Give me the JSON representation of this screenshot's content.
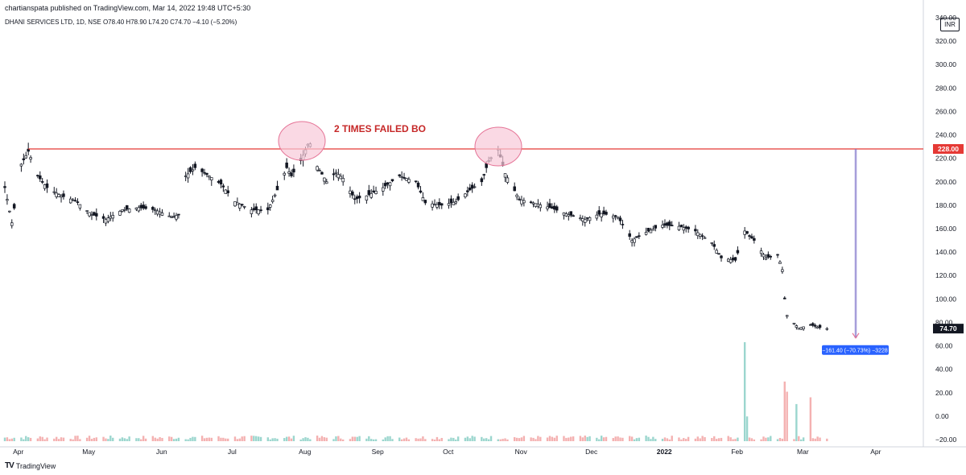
{
  "header": {
    "published": "chartianspata published on TradingView.com, Mar 14, 2022 19:48 UTC+5:30",
    "symbol_line": "DHANI SERVICES LTD, 1D, NSE  O78.40  H78.90  L74.20  C74.70  −4.10 (−5.20%)"
  },
  "currency": "INR",
  "footer": {
    "brand": "TradingView",
    "logo": "tradingview-logo-icon"
  },
  "colors": {
    "up": "#131722",
    "down": "#131722",
    "resistance": "#e53935",
    "circle_fill": "#f8c9d8",
    "circle_stroke": "#e57396",
    "measure": "#7b6fc9",
    "label_bg": "#2962ff",
    "volume_up": "#89cfc6",
    "volume_down": "#f2a3a3"
  },
  "chart_data": {
    "type": "candlestick",
    "x_ticks": [
      "Apr",
      "May",
      "Jun",
      "Jul",
      "Aug",
      "Sep",
      "Oct",
      "Nov",
      "Dec",
      "2022",
      "Feb",
      "Mar",
      "Apr"
    ],
    "y_ticks": [
      "−20.00",
      "0.00",
      "20.00",
      "40.00",
      "60.00",
      "80.00",
      "100.00",
      "120.00",
      "140.00",
      "160.00",
      "180.00",
      "200.00",
      "220.00",
      "240.00",
      "260.00",
      "280.00",
      "300.00",
      "320.00",
      "340.00"
    ],
    "ylim": [
      -20,
      340
    ],
    "last_price": 74.7,
    "last_price_label": "74.70",
    "resistance": {
      "value": 228.0,
      "label": "228.00"
    },
    "annotation": "2 TIMES FAILED BO",
    "measure_label": "−161.40 (−70.73%) −3228",
    "anchors": [
      [
        "2021-03-29",
        195
      ],
      [
        "2021-04-01",
        165
      ],
      [
        "2021-04-05",
        215
      ],
      [
        "2021-04-08",
        226
      ],
      [
        "2021-04-12",
        205
      ],
      [
        "2021-04-16",
        195
      ],
      [
        "2021-04-22",
        188
      ],
      [
        "2021-04-28",
        184
      ],
      [
        "2021-05-05",
        172
      ],
      [
        "2021-05-11",
        168
      ],
      [
        "2021-05-18",
        176
      ],
      [
        "2021-05-25",
        178
      ],
      [
        "2021-06-01",
        176
      ],
      [
        "2021-06-08",
        170
      ],
      [
        "2021-06-11",
        172
      ],
      [
        "2021-06-14",
        205
      ],
      [
        "2021-06-18",
        212
      ],
      [
        "2021-06-24",
        205
      ],
      [
        "2021-06-29",
        198
      ],
      [
        "2021-07-05",
        183
      ],
      [
        "2021-07-12",
        176
      ],
      [
        "2021-07-19",
        176
      ],
      [
        "2021-07-23",
        193
      ],
      [
        "2021-07-27",
        212
      ],
      [
        "2021-07-29",
        205
      ],
      [
        "2021-08-02",
        218
      ],
      [
        "2021-08-05",
        232
      ],
      [
        "2021-08-08",
        233
      ],
      [
        "2021-08-09",
        213
      ],
      [
        "2021-08-13",
        200
      ],
      [
        "2021-08-17",
        208
      ],
      [
        "2021-08-20",
        203
      ],
      [
        "2021-08-25",
        185
      ],
      [
        "2021-08-30",
        188
      ],
      [
        "2021-09-06",
        195
      ],
      [
        "2021-09-13",
        205
      ],
      [
        "2021-09-20",
        200
      ],
      [
        "2021-09-24",
        182
      ],
      [
        "2021-10-01",
        180
      ],
      [
        "2021-10-07",
        183
      ],
      [
        "2021-10-13",
        193
      ],
      [
        "2021-10-18",
        200
      ],
      [
        "2021-10-21",
        218
      ],
      [
        "2021-10-25",
        228
      ],
      [
        "2021-10-28",
        207
      ],
      [
        "2021-11-03",
        185
      ],
      [
        "2021-11-09",
        182
      ],
      [
        "2021-11-16",
        178
      ],
      [
        "2021-11-24",
        172
      ],
      [
        "2021-12-01",
        168
      ],
      [
        "2021-12-08",
        173
      ],
      [
        "2021-12-15",
        170
      ],
      [
        "2021-12-21",
        150
      ],
      [
        "2021-12-27",
        157
      ],
      [
        "2022-01-03",
        163
      ],
      [
        "2022-01-10",
        162
      ],
      [
        "2022-01-17",
        158
      ],
      [
        "2022-01-24",
        148
      ],
      [
        "2022-01-28",
        135
      ],
      [
        "2022-02-03",
        133
      ],
      [
        "2022-02-07",
        158
      ],
      [
        "2022-02-11",
        150
      ],
      [
        "2022-02-16",
        135
      ],
      [
        "2022-02-21",
        138
      ],
      [
        "2022-02-23",
        125
      ],
      [
        "2022-02-24",
        100
      ],
      [
        "2022-02-25",
        86
      ],
      [
        "2022-03-02",
        75
      ],
      [
        "2022-03-07",
        78
      ],
      [
        "2022-03-10",
        76
      ],
      [
        "2022-03-14",
        74.7
      ]
    ],
    "volume_spikes": [
      [
        "2022-02-07",
        68,
        "up"
      ],
      [
        "2022-02-08",
        2,
        "up"
      ],
      [
        "2022-02-24",
        33,
        "down"
      ],
      [
        "2022-02-25",
        24,
        "down"
      ],
      [
        "2022-03-01",
        13,
        "up"
      ],
      [
        "2022-03-07",
        19,
        "down"
      ]
    ]
  }
}
